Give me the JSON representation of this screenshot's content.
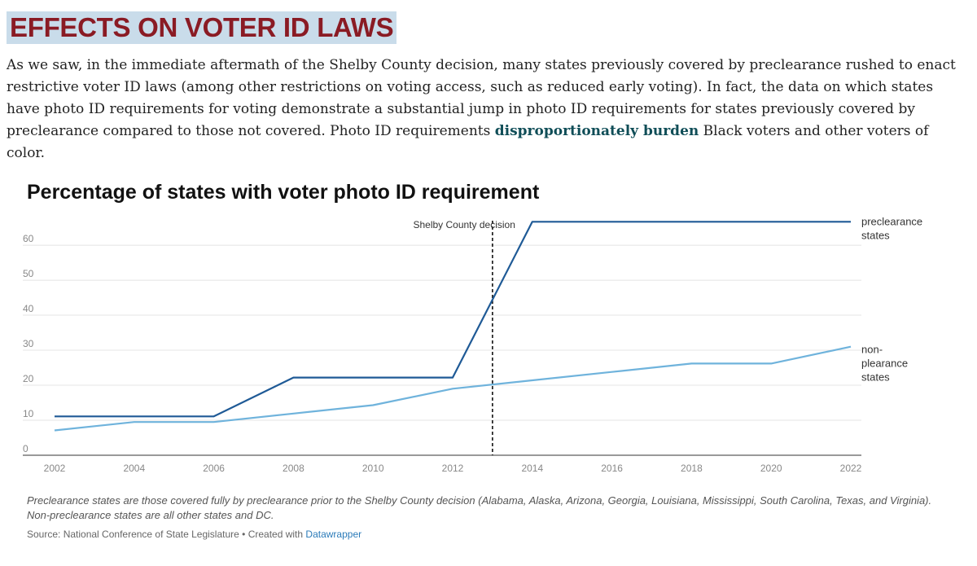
{
  "section": {
    "title": "EFFECTS ON VOTER ID LAWS"
  },
  "paragraph": {
    "before": "As we saw, in the immediate aftermath of the Shelby County decision, many states previously covered by preclearance rushed to enact restrictive voter ID laws (among other restrictions on voting access, such as reduced early voting). In fact, the data on which states have photo ID requirements for voting demonstrate a substantial jump in photo ID requirements for states previously covered by preclearance compared to those not covered. Photo ID requirements ",
    "link": "disproportionately burden",
    "after": " Black voters and other voters of color."
  },
  "chart_data": {
    "type": "line",
    "title": "Percentage of states with voter photo ID requirement",
    "x_ticks": [
      "2002",
      "2004",
      "2006",
      "2008",
      "2010",
      "2012",
      "2014",
      "2016",
      "2018",
      "2020",
      "2022"
    ],
    "y_ticks": [
      "0",
      "10",
      "20",
      "30",
      "40",
      "50",
      "60"
    ],
    "xlim": [
      2002,
      2022
    ],
    "ylim": [
      0,
      67
    ],
    "grid": true,
    "series": [
      {
        "name": "preclearance states",
        "label_lines": [
          "preclearance",
          "states"
        ],
        "color": "#1f5a96",
        "x": [
          2002,
          2006,
          2008,
          2012,
          2014,
          2022
        ],
        "y": [
          11.1,
          11.1,
          22.2,
          22.2,
          66.7,
          66.7
        ]
      },
      {
        "name": "non-plearance states",
        "label_lines": [
          "non-",
          "plearance",
          "states"
        ],
        "color": "#6fb3dc",
        "x": [
          2002,
          2004,
          2006,
          2008,
          2010,
          2012,
          2014,
          2016,
          2018,
          2020,
          2022
        ],
        "y": [
          7.1,
          9.5,
          9.5,
          11.9,
          14.3,
          19.0,
          21.4,
          23.8,
          26.2,
          26.2,
          31.0
        ]
      }
    ],
    "annotation": {
      "text": "Shelby County decision",
      "x": 2013
    }
  },
  "notes": "Preclearance states are those covered fully by preclearance prior to the Shelby County decision (Alabama, Alaska, Arizona, Georgia, Louisiana, Mississippi, South Carolina, Texas, and Virginia). Non-preclearance states are all other states and DC.",
  "source": {
    "text": "Source: National Conference of State Legislature • Created with ",
    "link": "Datawrapper"
  }
}
